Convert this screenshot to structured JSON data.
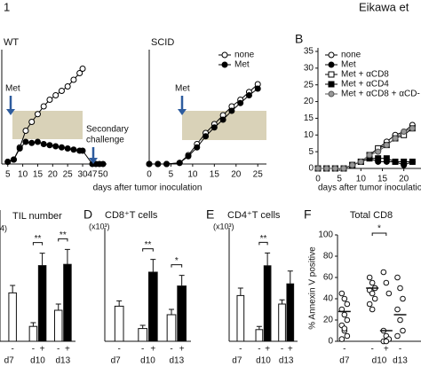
{
  "header": {
    "figure": "1",
    "author": "Eikawa et"
  },
  "chart_data": [
    {
      "type": "line",
      "title": "WT",
      "x": [
        5,
        7,
        9,
        11,
        13,
        15,
        17,
        19,
        21,
        23,
        25,
        27,
        29,
        30,
        47,
        48,
        49,
        50
      ],
      "xlim": [
        3,
        51
      ],
      "xticks": [
        5,
        10,
        15,
        20,
        25,
        30,
        47,
        50
      ],
      "axis_break": [
        31,
        46
      ],
      "ylim": [
        0,
        100
      ],
      "series": [
        {
          "name": "none",
          "marker": "circle",
          "color": "#000000",
          "fill": "#ffffff",
          "values": [
            2,
            4,
            15,
            30,
            38,
            45,
            52,
            58,
            62,
            66,
            70,
            76,
            82,
            86,
            null,
            null,
            null,
            null
          ]
        },
        {
          "name": "Met",
          "marker": "circle",
          "color": "#000000",
          "fill": "#000000",
          "values": [
            2,
            4,
            14,
            20,
            19,
            20,
            18,
            17,
            16,
            15,
            14,
            13,
            12,
            12,
            0,
            0,
            0,
            0
          ]
        }
      ],
      "annotations": [
        "Met",
        "Secondary",
        "challenge"
      ]
    },
    {
      "type": "line",
      "title": "SCID",
      "xlabel": "days after tumor inoculation",
      "x": [
        0,
        2,
        4,
        7,
        9,
        11,
        13,
        15,
        17,
        19,
        21,
        23,
        25
      ],
      "xlim": [
        0,
        27
      ],
      "xticks": [
        0,
        5,
        10,
        15,
        20,
        25
      ],
      "ylim": [
        0,
        100
      ],
      "legend": "upper right",
      "series": [
        {
          "name": "none",
          "marker": "circle",
          "color": "#000000",
          "fill": "#ffffff",
          "values": [
            0,
            0,
            0,
            1,
            8,
            18,
            28,
            36,
            44,
            52,
            58,
            65,
            72
          ]
        },
        {
          "name": "Met",
          "marker": "circle",
          "color": "#000000",
          "fill": "#000000",
          "values": [
            0,
            0,
            0,
            1,
            7,
            15,
            25,
            33,
            40,
            48,
            55,
            62,
            68
          ]
        }
      ],
      "annotations": [
        "Met"
      ]
    },
    {
      "type": "line",
      "panel": "B",
      "xlabel": "days after tumor inoculation",
      "x": [
        0,
        2,
        4,
        6,
        8,
        10,
        12,
        14,
        16,
        18,
        20,
        22
      ],
      "xlim": [
        0,
        24
      ],
      "xticks": [
        0,
        5,
        10,
        15,
        20
      ],
      "ylim": [
        0,
        35
      ],
      "yticks": [
        0,
        5,
        10,
        15,
        20,
        25,
        30,
        35
      ],
      "legend": "upper left",
      "series": [
        {
          "name": "none",
          "marker": "circle",
          "color": "#000000",
          "fill": "#ffffff",
          "values": [
            0,
            0,
            0,
            0,
            1,
            2,
            4,
            6,
            8,
            10,
            11,
            13
          ]
        },
        {
          "name": "Met",
          "marker": "circle",
          "color": "#000000",
          "fill": "#000000",
          "values": [
            0,
            0,
            0,
            0,
            1,
            2,
            3,
            2,
            2,
            2,
            1,
            2
          ]
        },
        {
          "name": "Met + αCD8",
          "marker": "square",
          "color": "#000000",
          "fill": "#ffffff",
          "values": [
            0,
            0,
            0,
            0,
            1,
            2,
            4,
            6,
            7,
            9,
            10,
            12
          ]
        },
        {
          "name": "Met + αCD4",
          "marker": "square",
          "color": "#000000",
          "fill": "#000000",
          "values": [
            0,
            0,
            0,
            0,
            1,
            2,
            3,
            3,
            3,
            2,
            2,
            2
          ]
        },
        {
          "name": "Met + αCD8 + αCD-",
          "marker": "circle",
          "color": "#555555",
          "fill": "#999999",
          "values": [
            0,
            0,
            0,
            0,
            1,
            2,
            4,
            5,
            7,
            9,
            11,
            12
          ]
        }
      ]
    },
    {
      "type": "bar",
      "title": "TIL number",
      "unit": "4)",
      "categories": [
        "d7",
        "d10",
        "d13"
      ],
      "ylim": [
        0,
        100
      ],
      "series": [
        {
          "name": "-",
          "color": "#ffffff",
          "values": [
            39,
            12,
            25
          ],
          "errors": [
            6,
            3,
            5
          ]
        },
        {
          "name": "+",
          "color": "#000000",
          "values": [
            null,
            61,
            62
          ],
          "errors": [
            null,
            10,
            12
          ]
        }
      ],
      "significance": [
        null,
        "**",
        "**"
      ]
    },
    {
      "type": "bar",
      "panel": "D",
      "title": "CD8⁺T cells",
      "unit": "(x10³)",
      "categories": [
        "d7",
        "d10",
        "d13"
      ],
      "ylim": [
        0,
        100
      ],
      "series": [
        {
          "name": "-",
          "color": "#ffffff",
          "values": [
            33,
            12,
            25
          ],
          "errors": [
            5,
            3,
            5
          ]
        },
        {
          "name": "+",
          "color": "#000000",
          "values": [
            null,
            65,
            52
          ],
          "errors": [
            null,
            12,
            10
          ]
        }
      ],
      "significance": [
        null,
        "**",
        "*"
      ]
    },
    {
      "type": "bar",
      "panel": "E",
      "title": "CD4⁺T cells",
      "unit": "(x10³)",
      "categories": [
        "d7",
        "d10",
        "d13"
      ],
      "ylim": [
        0,
        100
      ],
      "series": [
        {
          "name": "-",
          "color": "#ffffff",
          "values": [
            43,
            11,
            35
          ],
          "errors": [
            7,
            3,
            4
          ]
        },
        {
          "name": "+",
          "color": "#000000",
          "values": [
            null,
            71,
            54
          ],
          "errors": [
            null,
            12,
            12
          ]
        }
      ],
      "significance": [
        null,
        "**",
        null
      ]
    },
    {
      "type": "strip",
      "panel": "F",
      "title": "Total CD8",
      "ylabel": "% Annexin V positive",
      "categories": [
        "d7",
        "d10",
        "d13"
      ],
      "ylim": [
        0,
        100
      ],
      "yticks": [
        0,
        20,
        40,
        60,
        80,
        100
      ],
      "series": [
        {
          "name": "-",
          "values": [
            [
              45,
              40,
              35,
              30,
              25,
              20,
              15,
              10,
              5,
              2,
              12
            ],
            [
              60,
              55,
              50,
              48,
              45,
              40,
              35,
              30,
              50
            ],
            [
              60,
              50,
              40,
              30,
              20,
              10,
              5
            ]
          ],
          "means": [
            28,
            50,
            25
          ]
        },
        {
          "name": "+",
          "values": [
            null,
            [
              65,
              55,
              45,
              10,
              5,
              2,
              0,
              0
            ],
            null
          ],
          "means": [
            null,
            10,
            null
          ]
        }
      ],
      "significance": [
        null,
        "*",
        null
      ]
    }
  ]
}
